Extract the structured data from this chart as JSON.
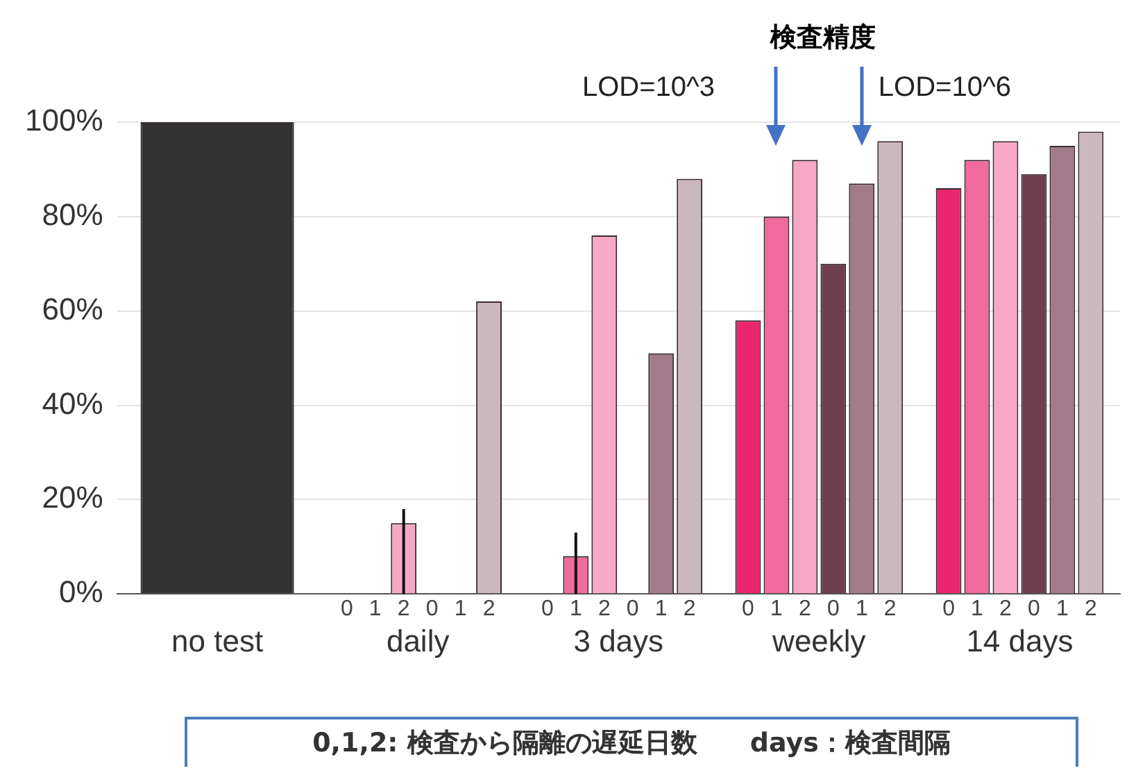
{
  "chart_data": {
    "type": "bar",
    "title": "検査精度",
    "categories": [
      "no test",
      "daily",
      "3 days",
      "weekly",
      "14 days"
    ],
    "series": [
      {
        "color": "#333333",
        "values": [
          100,
          null,
          null,
          null,
          null
        ]
      },
      {
        "name": "0",
        "color": "#e8266e",
        "values": [
          null,
          0,
          0,
          58,
          86
        ]
      },
      {
        "name": "1",
        "color": "#f06a9e",
        "values": [
          null,
          0,
          8,
          80,
          92
        ],
        "errors": [
          null,
          null,
          [
            0,
            13
          ],
          null,
          null
        ]
      },
      {
        "name": "2",
        "color": "#f7a8c6",
        "values": [
          null,
          15,
          76,
          92,
          96
        ],
        "errors": [
          null,
          [
            0,
            18
          ],
          null,
          null,
          null
        ]
      },
      {
        "name": "0",
        "color": "#6e3f4f",
        "values": [
          null,
          0,
          0,
          70,
          89
        ]
      },
      {
        "name": "1",
        "color": "#a27b8a",
        "values": [
          null,
          0,
          51,
          87,
          95
        ]
      },
      {
        "name": "2",
        "color": "#cbb8bf",
        "values": [
          null,
          62,
          88,
          96,
          98
        ]
      }
    ],
    "ylim": [
      0,
      100
    ],
    "yticks": [
      {
        "value": 0,
        "label": "0%"
      },
      {
        "value": 20,
        "label": "20%"
      },
      {
        "value": 40,
        "label": "40%"
      },
      {
        "value": 60,
        "label": "60%"
      },
      {
        "value": 80,
        "label": "80%"
      },
      {
        "value": 100,
        "label": "100%"
      }
    ],
    "grid": "y",
    "legend": false,
    "annotations": [
      "LOD=10^3",
      "LOD=10^6",
      "0,1,2: 検査から隔離の遅延日数　　days：検査間隔"
    ]
  }
}
